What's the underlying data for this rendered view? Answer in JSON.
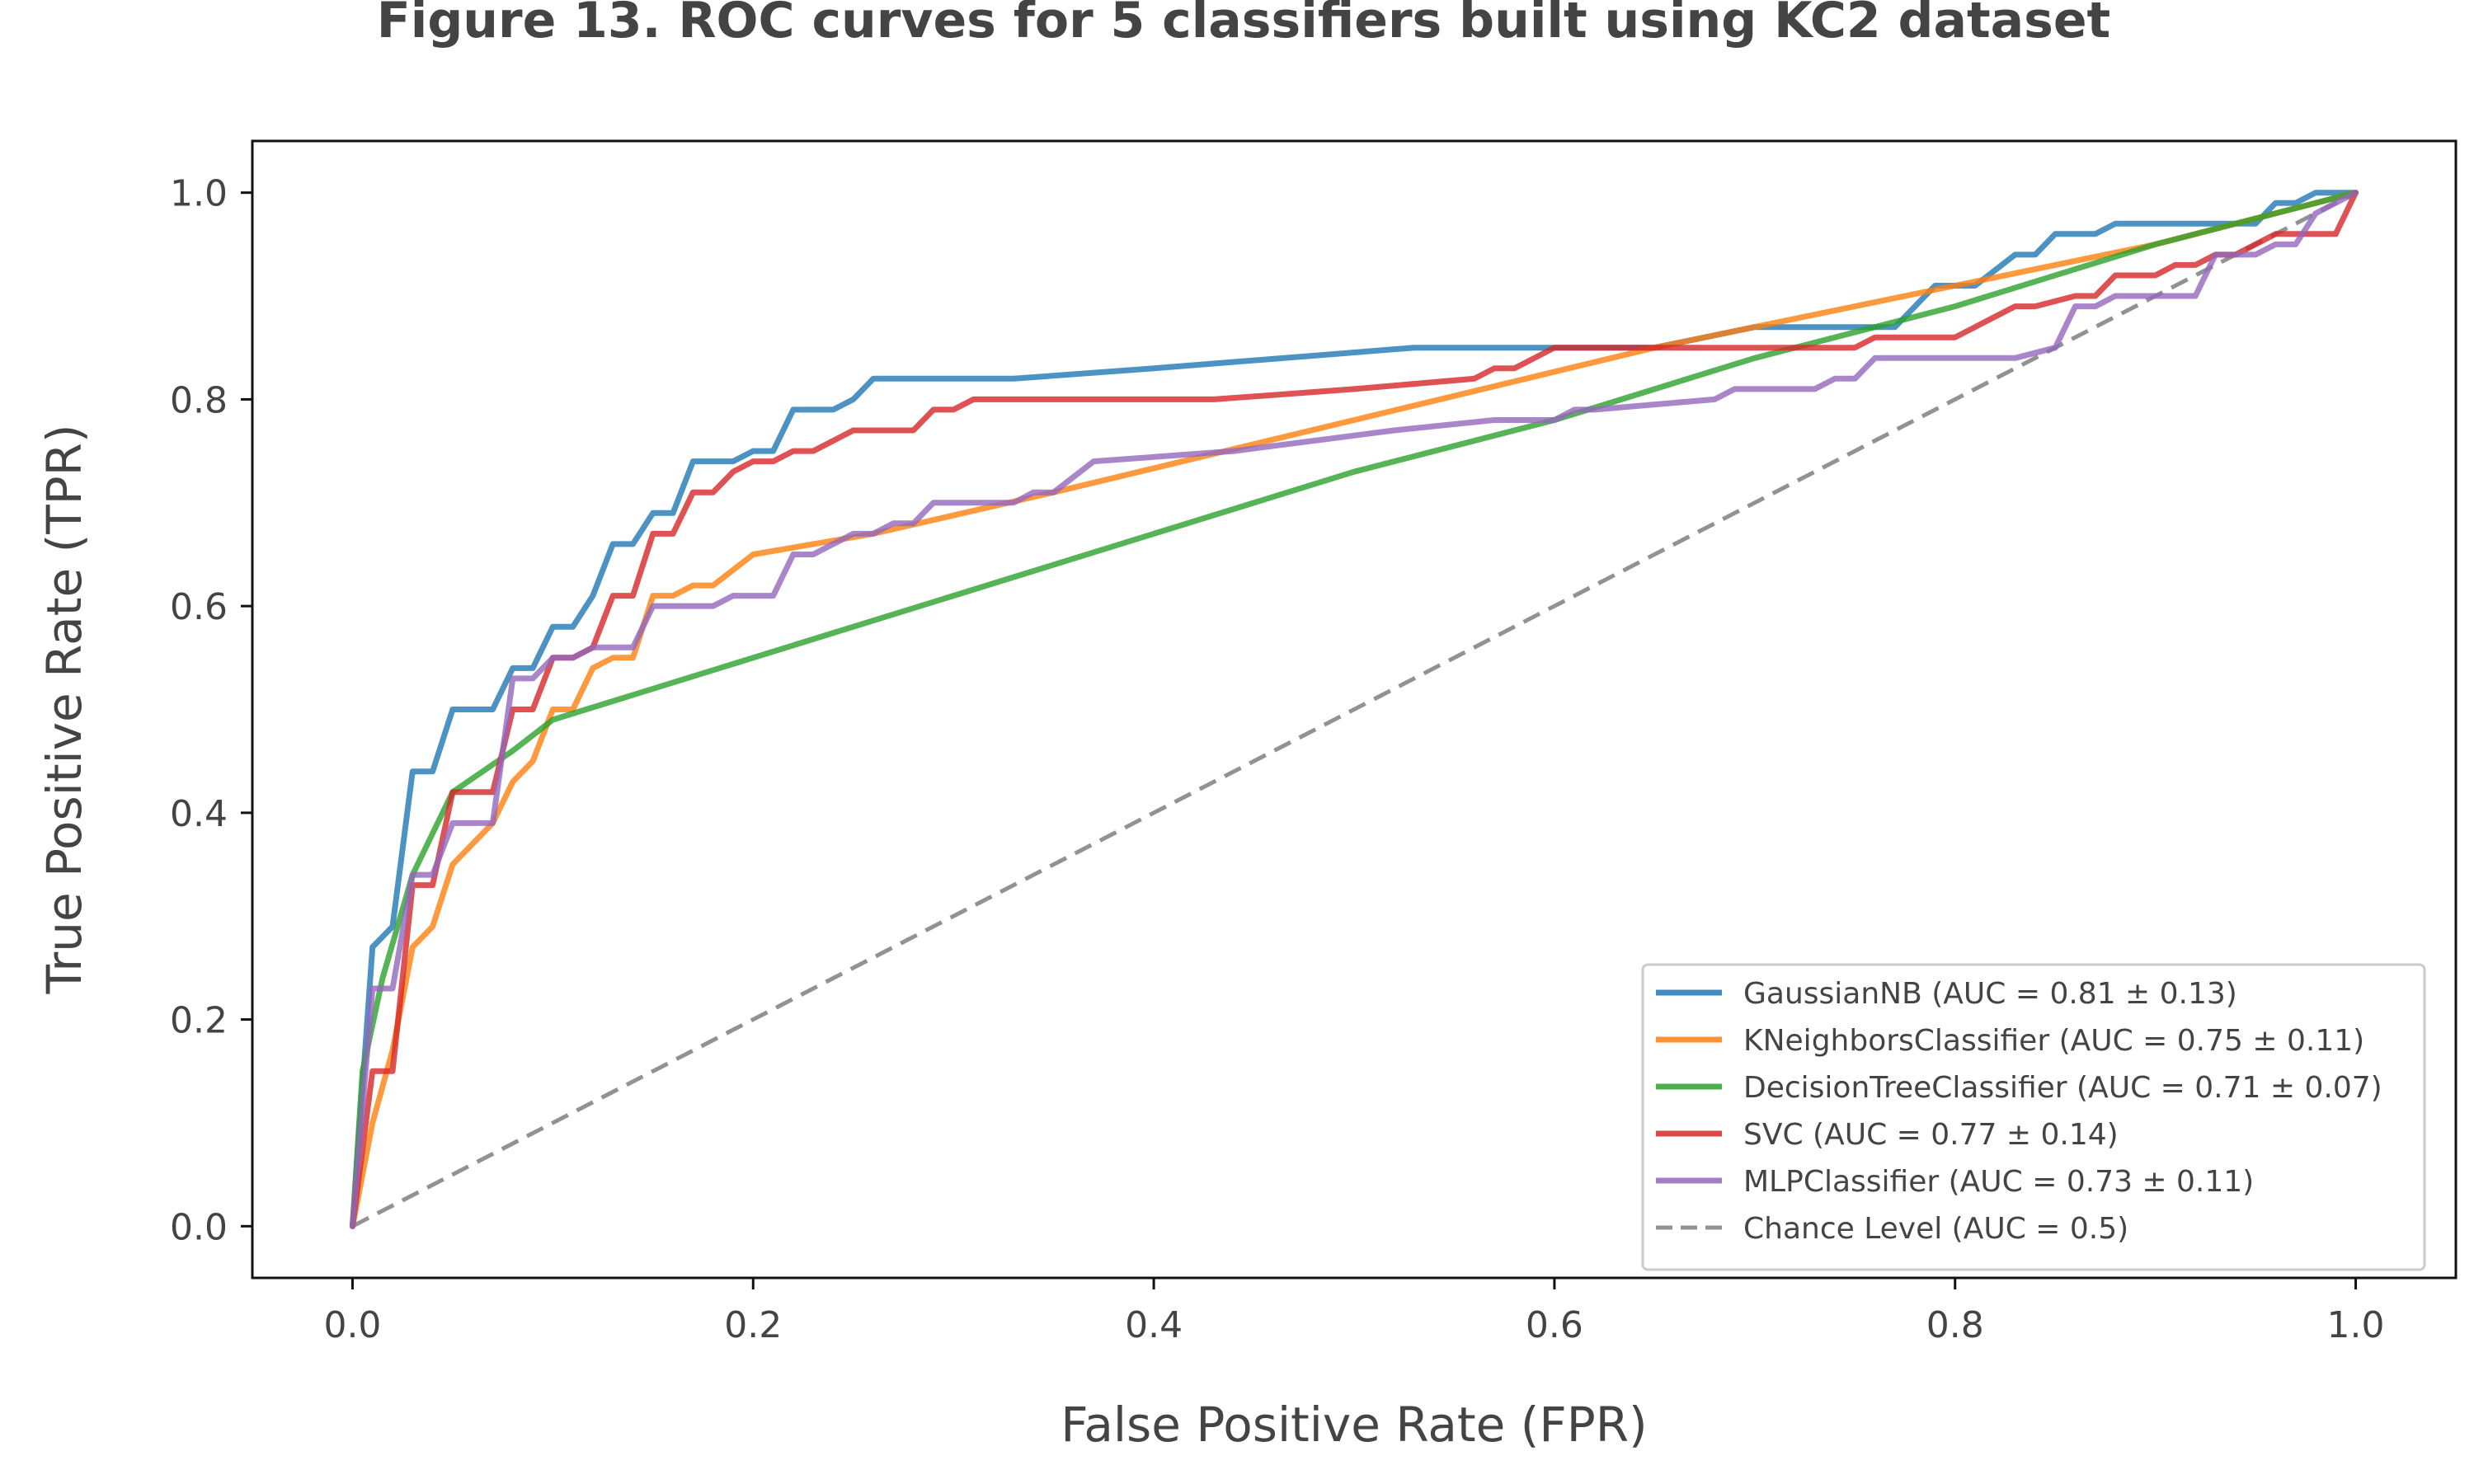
{
  "chart_data": {
    "type": "line",
    "title": "Figure 13. ROC curves for 5 classifiers built using KC2 dataset",
    "xlabel": "False Positive Rate (FPR)",
    "ylabel": "True Positive Rate (TPR)",
    "xlim": [
      -0.05,
      1.05
    ],
    "ylim": [
      -0.05,
      1.05
    ],
    "xticks": [
      0.0,
      0.2,
      0.4,
      0.6,
      0.8,
      1.0
    ],
    "yticks": [
      0.0,
      0.2,
      0.4,
      0.6,
      0.8,
      1.0
    ],
    "tick_labels_x": [
      "0.0",
      "0.2",
      "0.4",
      "0.6",
      "0.8",
      "1.0"
    ],
    "tick_labels_y": [
      "0.0",
      "0.2",
      "0.4",
      "0.6",
      "0.8",
      "1.0"
    ],
    "grid": false,
    "legend_position": "lower-right",
    "series": [
      {
        "name": "GaussianNB (AUC = 0.81 ± 0.13)",
        "color": "#1f77b4",
        "style": "solid",
        "points": [
          [
            0,
            0
          ],
          [
            0.01,
            0.27
          ],
          [
            0.02,
            0.29
          ],
          [
            0.03,
            0.44
          ],
          [
            0.04,
            0.44
          ],
          [
            0.05,
            0.5
          ],
          [
            0.07,
            0.5
          ],
          [
            0.08,
            0.54
          ],
          [
            0.09,
            0.54
          ],
          [
            0.1,
            0.58
          ],
          [
            0.11,
            0.58
          ],
          [
            0.12,
            0.61
          ],
          [
            0.13,
            0.66
          ],
          [
            0.14,
            0.66
          ],
          [
            0.15,
            0.69
          ],
          [
            0.16,
            0.69
          ],
          [
            0.17,
            0.74
          ],
          [
            0.19,
            0.74
          ],
          [
            0.2,
            0.75
          ],
          [
            0.21,
            0.75
          ],
          [
            0.22,
            0.79
          ],
          [
            0.24,
            0.79
          ],
          [
            0.25,
            0.8
          ],
          [
            0.26,
            0.82
          ],
          [
            0.33,
            0.82
          ],
          [
            0.4,
            0.83
          ],
          [
            0.53,
            0.85
          ],
          [
            0.65,
            0.85
          ],
          [
            0.7,
            0.87
          ],
          [
            0.77,
            0.87
          ],
          [
            0.79,
            0.91
          ],
          [
            0.81,
            0.91
          ],
          [
            0.83,
            0.94
          ],
          [
            0.84,
            0.94
          ],
          [
            0.85,
            0.96
          ],
          [
            0.87,
            0.96
          ],
          [
            0.88,
            0.97
          ],
          [
            0.95,
            0.97
          ],
          [
            0.96,
            0.99
          ],
          [
            0.97,
            0.99
          ],
          [
            0.98,
            1.0
          ],
          [
            1.0,
            1.0
          ]
        ]
      },
      {
        "name": "KNeighborsClassifier (AUC = 0.75 ± 0.11)",
        "color": "#ff7f0e",
        "style": "solid",
        "points": [
          [
            0,
            0
          ],
          [
            0.01,
            0.1
          ],
          [
            0.02,
            0.17
          ],
          [
            0.03,
            0.27
          ],
          [
            0.04,
            0.29
          ],
          [
            0.05,
            0.35
          ],
          [
            0.07,
            0.39
          ],
          [
            0.08,
            0.43
          ],
          [
            0.09,
            0.45
          ],
          [
            0.1,
            0.5
          ],
          [
            0.11,
            0.5
          ],
          [
            0.12,
            0.54
          ],
          [
            0.13,
            0.55
          ],
          [
            0.14,
            0.55
          ],
          [
            0.15,
            0.61
          ],
          [
            0.16,
            0.61
          ],
          [
            0.17,
            0.62
          ],
          [
            0.18,
            0.62
          ],
          [
            0.2,
            0.65
          ],
          [
            0.26,
            0.67
          ],
          [
            0.35,
            0.71
          ],
          [
            0.5,
            0.78
          ],
          [
            0.65,
            0.85
          ],
          [
            0.8,
            0.91
          ],
          [
            0.9,
            0.95
          ],
          [
            1.0,
            1.0
          ]
        ]
      },
      {
        "name": "DecisionTreeClassifier (AUC = 0.71 ± 0.07)",
        "color": "#2ca02c",
        "style": "solid",
        "points": [
          [
            0,
            0
          ],
          [
            0.005,
            0.15
          ],
          [
            0.015,
            0.24
          ],
          [
            0.03,
            0.34
          ],
          [
            0.04,
            0.38
          ],
          [
            0.05,
            0.42
          ],
          [
            0.08,
            0.46
          ],
          [
            0.1,
            0.49
          ],
          [
            0.2,
            0.55
          ],
          [
            0.3,
            0.61
          ],
          [
            0.4,
            0.67
          ],
          [
            0.5,
            0.73
          ],
          [
            0.6,
            0.78
          ],
          [
            0.7,
            0.84
          ],
          [
            0.8,
            0.89
          ],
          [
            0.9,
            0.95
          ],
          [
            1.0,
            1.0
          ]
        ]
      },
      {
        "name": "SVC (AUC = 0.77 ± 0.14)",
        "color": "#d62728",
        "style": "solid",
        "points": [
          [
            0,
            0
          ],
          [
            0.01,
            0.15
          ],
          [
            0.02,
            0.15
          ],
          [
            0.03,
            0.33
          ],
          [
            0.04,
            0.33
          ],
          [
            0.05,
            0.42
          ],
          [
            0.07,
            0.42
          ],
          [
            0.08,
            0.5
          ],
          [
            0.09,
            0.5
          ],
          [
            0.1,
            0.55
          ],
          [
            0.11,
            0.55
          ],
          [
            0.12,
            0.56
          ],
          [
            0.13,
            0.61
          ],
          [
            0.14,
            0.61
          ],
          [
            0.15,
            0.67
          ],
          [
            0.16,
            0.67
          ],
          [
            0.17,
            0.71
          ],
          [
            0.18,
            0.71
          ],
          [
            0.19,
            0.73
          ],
          [
            0.2,
            0.74
          ],
          [
            0.21,
            0.74
          ],
          [
            0.22,
            0.75
          ],
          [
            0.23,
            0.75
          ],
          [
            0.25,
            0.77
          ],
          [
            0.28,
            0.77
          ],
          [
            0.29,
            0.79
          ],
          [
            0.3,
            0.79
          ],
          [
            0.31,
            0.8
          ],
          [
            0.43,
            0.8
          ],
          [
            0.5,
            0.81
          ],
          [
            0.56,
            0.82
          ],
          [
            0.57,
            0.83
          ],
          [
            0.58,
            0.83
          ],
          [
            0.59,
            0.84
          ],
          [
            0.6,
            0.85
          ],
          [
            0.65,
            0.85
          ],
          [
            0.7,
            0.85
          ],
          [
            0.75,
            0.85
          ],
          [
            0.76,
            0.86
          ],
          [
            0.8,
            0.86
          ],
          [
            0.81,
            0.87
          ],
          [
            0.82,
            0.88
          ],
          [
            0.83,
            0.89
          ],
          [
            0.84,
            0.89
          ],
          [
            0.86,
            0.9
          ],
          [
            0.87,
            0.9
          ],
          [
            0.88,
            0.92
          ],
          [
            0.9,
            0.92
          ],
          [
            0.91,
            0.93
          ],
          [
            0.92,
            0.93
          ],
          [
            0.93,
            0.94
          ],
          [
            0.94,
            0.94
          ],
          [
            0.95,
            0.95
          ],
          [
            0.96,
            0.96
          ],
          [
            0.98,
            0.96
          ],
          [
            0.99,
            0.96
          ],
          [
            1.0,
            1.0
          ]
        ]
      },
      {
        "name": "MLPClassifier (AUC = 0.73 ± 0.11)",
        "color": "#9467bd",
        "style": "solid",
        "points": [
          [
            0,
            0
          ],
          [
            0.01,
            0.23
          ],
          [
            0.02,
            0.23
          ],
          [
            0.03,
            0.34
          ],
          [
            0.04,
            0.34
          ],
          [
            0.05,
            0.39
          ],
          [
            0.07,
            0.39
          ],
          [
            0.08,
            0.53
          ],
          [
            0.09,
            0.53
          ],
          [
            0.1,
            0.55
          ],
          [
            0.11,
            0.55
          ],
          [
            0.12,
            0.56
          ],
          [
            0.13,
            0.56
          ],
          [
            0.14,
            0.56
          ],
          [
            0.15,
            0.6
          ],
          [
            0.18,
            0.6
          ],
          [
            0.19,
            0.61
          ],
          [
            0.21,
            0.61
          ],
          [
            0.22,
            0.65
          ],
          [
            0.23,
            0.65
          ],
          [
            0.24,
            0.66
          ],
          [
            0.25,
            0.67
          ],
          [
            0.26,
            0.67
          ],
          [
            0.27,
            0.68
          ],
          [
            0.28,
            0.68
          ],
          [
            0.29,
            0.7
          ],
          [
            0.33,
            0.7
          ],
          [
            0.34,
            0.71
          ],
          [
            0.35,
            0.71
          ],
          [
            0.37,
            0.74
          ],
          [
            0.44,
            0.75
          ],
          [
            0.52,
            0.77
          ],
          [
            0.57,
            0.78
          ],
          [
            0.6,
            0.78
          ],
          [
            0.61,
            0.79
          ],
          [
            0.62,
            0.79
          ],
          [
            0.68,
            0.8
          ],
          [
            0.69,
            0.81
          ],
          [
            0.73,
            0.81
          ],
          [
            0.74,
            0.82
          ],
          [
            0.75,
            0.82
          ],
          [
            0.76,
            0.84
          ],
          [
            0.83,
            0.84
          ],
          [
            0.85,
            0.85
          ],
          [
            0.86,
            0.89
          ],
          [
            0.87,
            0.89
          ],
          [
            0.88,
            0.9
          ],
          [
            0.92,
            0.9
          ],
          [
            0.93,
            0.94
          ],
          [
            0.94,
            0.94
          ],
          [
            0.95,
            0.94
          ],
          [
            0.96,
            0.95
          ],
          [
            0.97,
            0.95
          ],
          [
            0.98,
            0.98
          ],
          [
            0.99,
            0.99
          ],
          [
            1.0,
            1.0
          ]
        ]
      },
      {
        "name": "Chance Level (AUC = 0.5)",
        "color": "#7f7f7f",
        "style": "dashed",
        "points": [
          [
            0,
            0
          ],
          [
            1,
            1
          ]
        ]
      }
    ]
  }
}
